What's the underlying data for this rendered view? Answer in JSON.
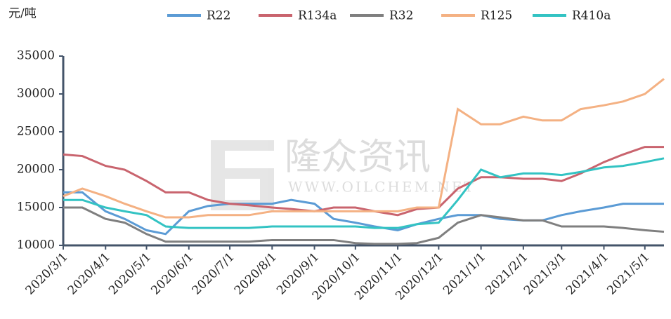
{
  "chart_data": {
    "type": "line",
    "y_label": "元/吨",
    "watermark": [
      "隆众资讯",
      "WWW.OILCHEM.NET"
    ],
    "x": [
      "2020/3/1",
      "2020/3/15",
      "2020/4/1",
      "2020/4/15",
      "2020/5/1",
      "2020/5/15",
      "2020/6/1",
      "2020/6/15",
      "2020/7/1",
      "2020/7/15",
      "2020/8/1",
      "2020/8/15",
      "2020/9/1",
      "2020/9/15",
      "2020/10/1",
      "2020/10/15",
      "2020/11/1",
      "2020/11/15",
      "2020/12/1",
      "2020/12/15",
      "2021/1/1",
      "2021/1/15",
      "2021/2/1",
      "2021/2/15",
      "2021/3/1",
      "2021/3/15",
      "2021/4/1",
      "2021/4/15",
      "2021/5/1",
      "2021/5/15"
    ],
    "series": [
      {
        "name": "R22",
        "color": "#5b9bd5",
        "values": [
          17000,
          17000,
          14500,
          13500,
          12000,
          11500,
          14500,
          15200,
          15500,
          15500,
          15500,
          16000,
          15500,
          13500,
          13000,
          12500,
          12000,
          12800,
          13500,
          14000,
          14000,
          13500,
          13300,
          13300,
          14000,
          14500,
          15000,
          15500,
          15500,
          15500
        ]
      },
      {
        "name": "R134a",
        "color": "#c9646e",
        "values": [
          22000,
          21800,
          20500,
          20000,
          18500,
          17000,
          17000,
          16000,
          15500,
          15300,
          15000,
          14800,
          14500,
          15000,
          15000,
          14500,
          14000,
          14800,
          15000,
          17500,
          19000,
          19000,
          18800,
          18800,
          18500,
          19500,
          21000,
          22000,
          23000,
          23000
        ]
      },
      {
        "name": "R32",
        "color": "#7f7f7f",
        "values": [
          15000,
          15000,
          13500,
          13000,
          11500,
          10500,
          10500,
          10500,
          10500,
          10500,
          10700,
          10700,
          10700,
          10700,
          10300,
          10200,
          10200,
          10300,
          11000,
          13000,
          14000,
          13700,
          13300,
          13300,
          12500,
          12500,
          12500,
          12300,
          12000,
          11800
        ]
      },
      {
        "name": "R125",
        "color": "#f4b183",
        "values": [
          16500,
          17500,
          16500,
          15500,
          14500,
          13700,
          13700,
          14000,
          14000,
          14000,
          14500,
          14500,
          14500,
          14500,
          14500,
          14500,
          14500,
          15000,
          15000,
          28000,
          26000,
          26000,
          27000,
          26500,
          26500,
          28000,
          28500,
          29000,
          30000,
          32000
        ]
      },
      {
        "name": "R410a",
        "color": "#33c3c3",
        "values": [
          16000,
          16000,
          15000,
          14500,
          14000,
          12500,
          12300,
          12300,
          12300,
          12300,
          12500,
          12500,
          12500,
          12500,
          12500,
          12300,
          12300,
          12800,
          13000,
          16000,
          20000,
          19000,
          19500,
          19500,
          19300,
          19700,
          20300,
          20500,
          21000,
          21500
        ]
      }
    ],
    "xlim": [
      "2020/3/1",
      "2021/5/15"
    ],
    "xticks": [
      "2020/3/1",
      "2020/4/1",
      "2020/5/1",
      "2020/6/1",
      "2020/7/1",
      "2020/8/1",
      "2020/9/1",
      "2020/10/1",
      "2020/11/1",
      "2020/12/1",
      "2021/1/1",
      "2021/2/1",
      "2021/3/1",
      "2021/4/1",
      "2021/5/1"
    ],
    "ylim": [
      10000,
      35000
    ],
    "yticks": [
      10000,
      15000,
      20000,
      25000,
      30000,
      35000
    ],
    "legend": "top",
    "grid": false
  }
}
